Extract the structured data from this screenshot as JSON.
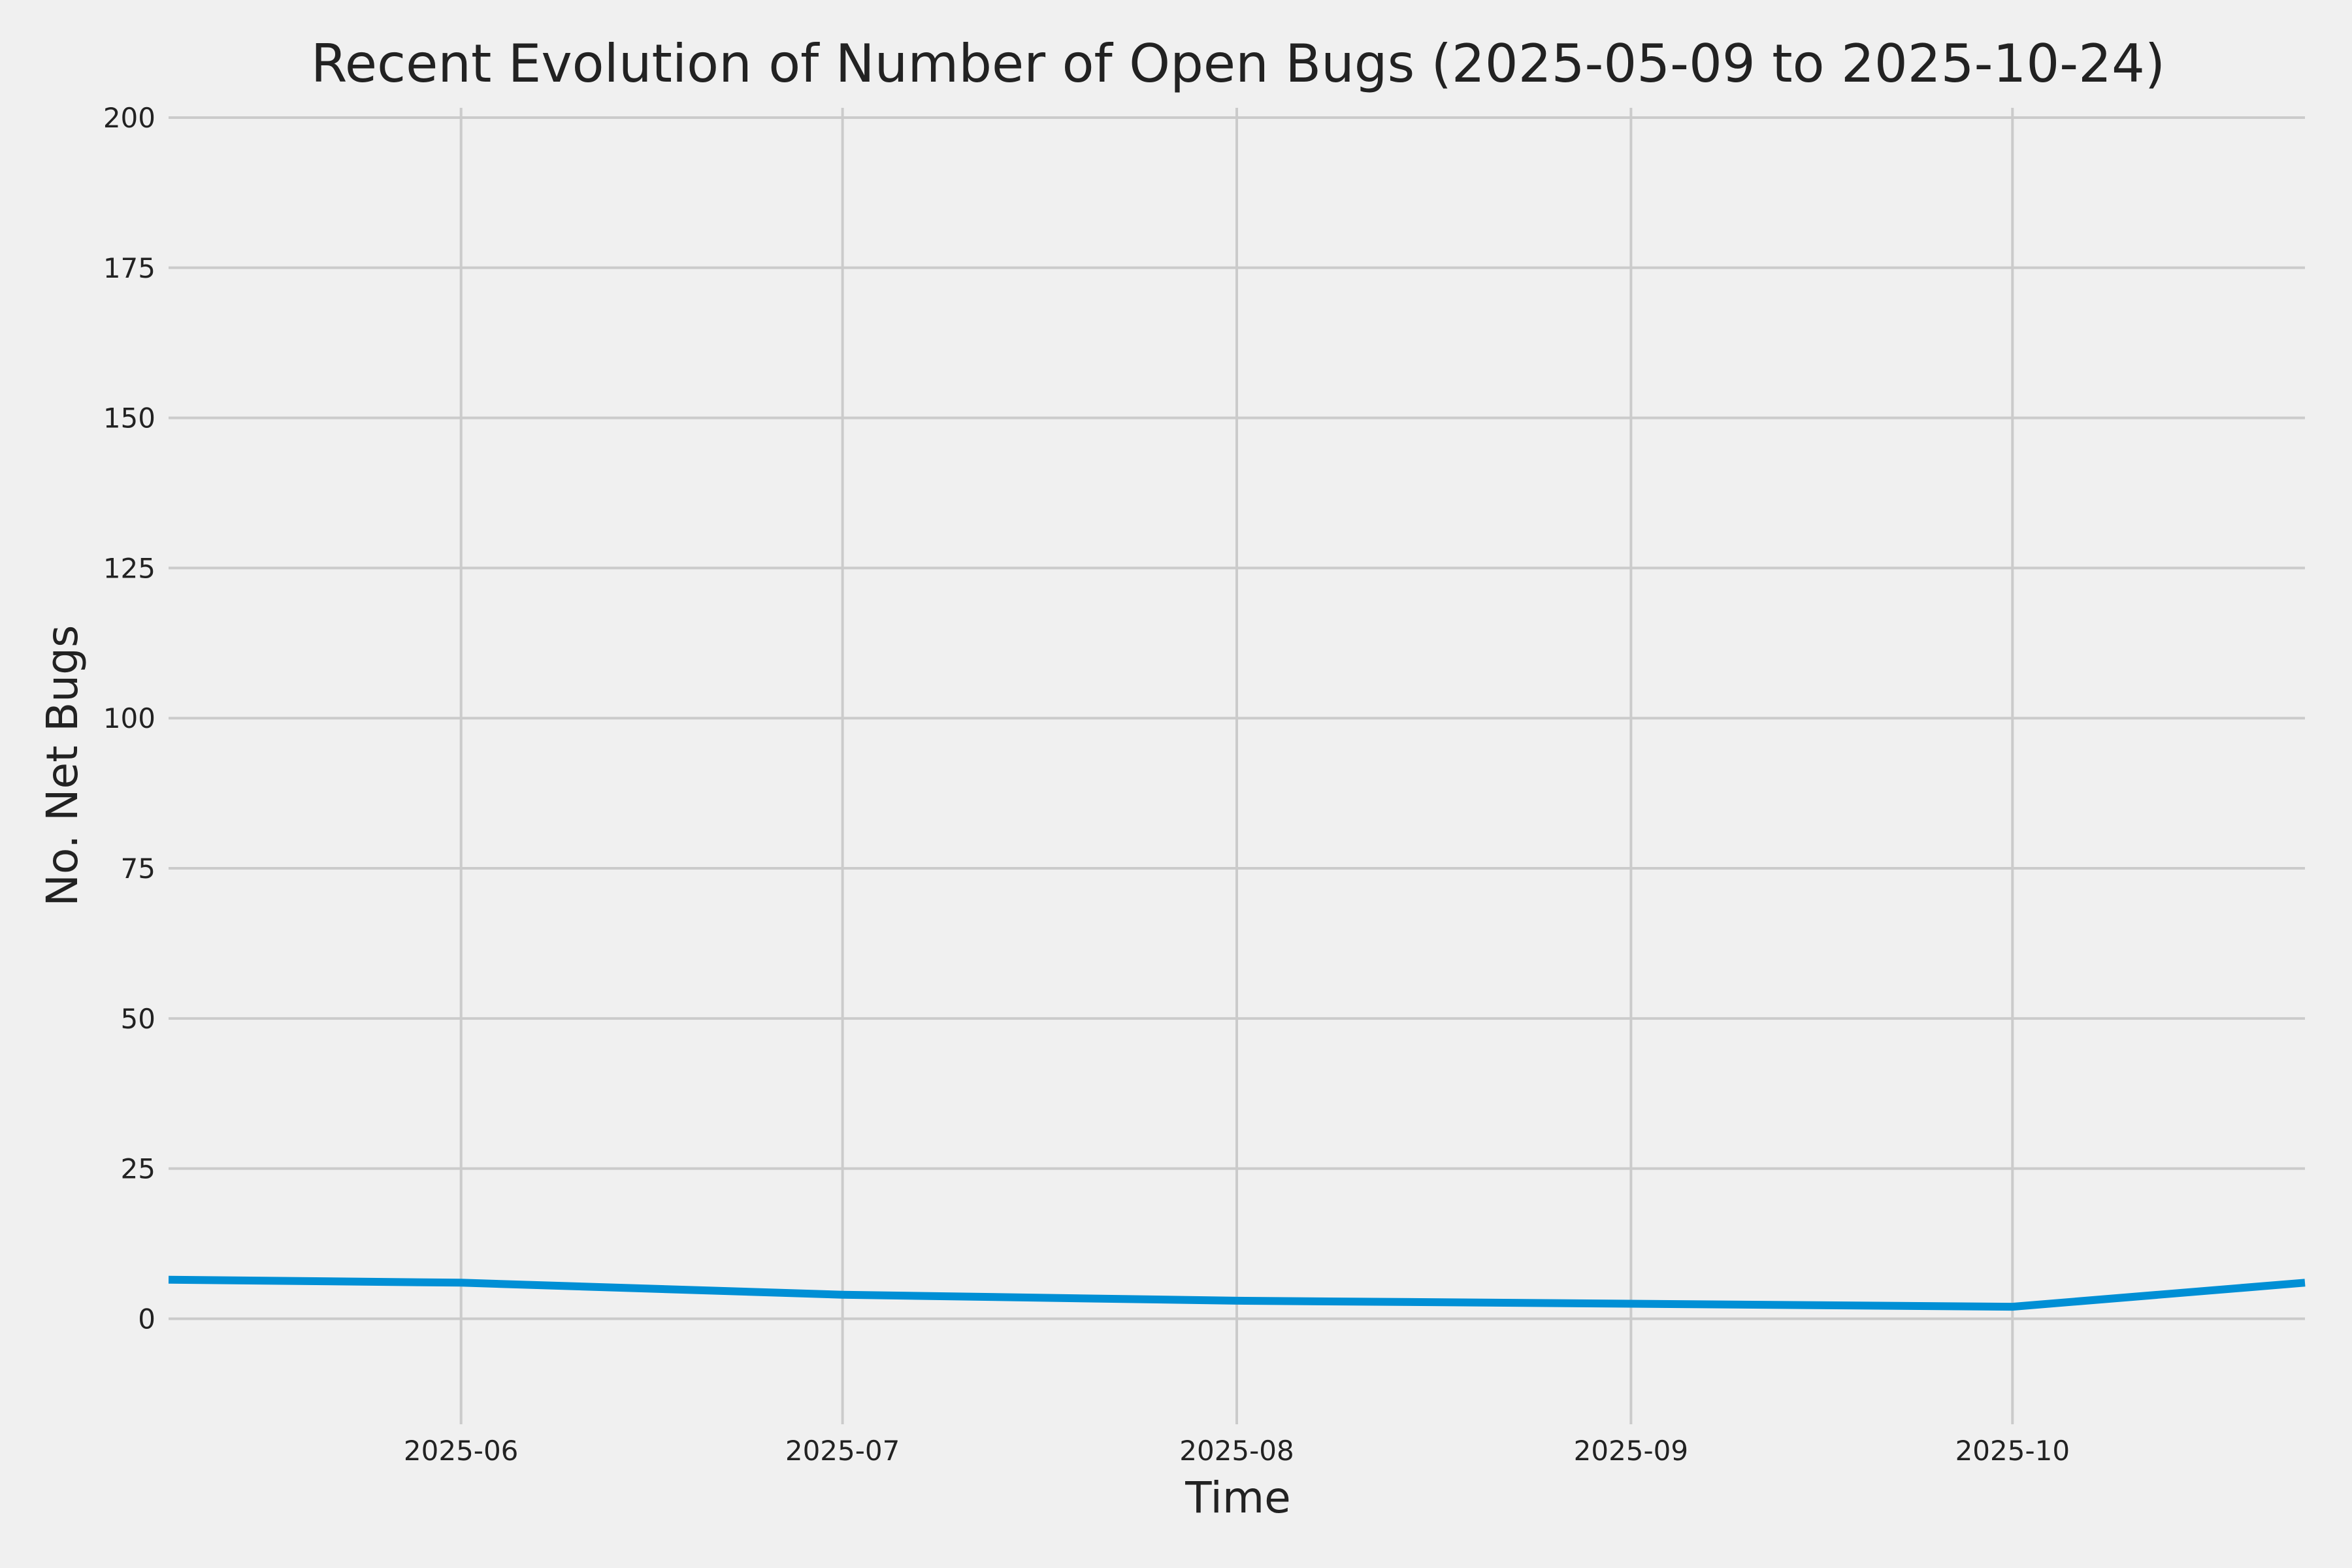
{
  "chart_data": {
    "type": "line",
    "title": "Recent Evolution of Number of Open Bugs (2025-05-09 to 2025-10-24)",
    "xlabel": "Time",
    "ylabel": "No. Net Bugs",
    "xlim": [
      "2025-05-09",
      "2025-10-24"
    ],
    "ylim": [
      -8,
      200
    ],
    "x_ticks": [
      "2025-06-01",
      "2025-07-01",
      "2025-08-01",
      "2025-09-01",
      "2025-10-01"
    ],
    "x_tick_labels": [
      "2025-06",
      "2025-07",
      "2025-08",
      "2025-09",
      "2025-10"
    ],
    "y_ticks": [
      0,
      25,
      50,
      75,
      100,
      125,
      150,
      175,
      200
    ],
    "y_tick_labels": [
      "0",
      "25",
      "50",
      "75",
      "100",
      "125",
      "150",
      "175",
      "200"
    ],
    "grid": true,
    "line_color": "#008fd5",
    "background_color": "#f0f0f0",
    "grid_color": "#cbcbcb",
    "series": [
      {
        "x": [
          "2025-05-09",
          "2025-06-01",
          "2025-07-01",
          "2025-08-01",
          "2025-09-01",
          "2025-10-01",
          "2025-10-24"
        ],
        "values": [
          6.5,
          6,
          4,
          3,
          2.5,
          2,
          6
        ]
      }
    ]
  }
}
